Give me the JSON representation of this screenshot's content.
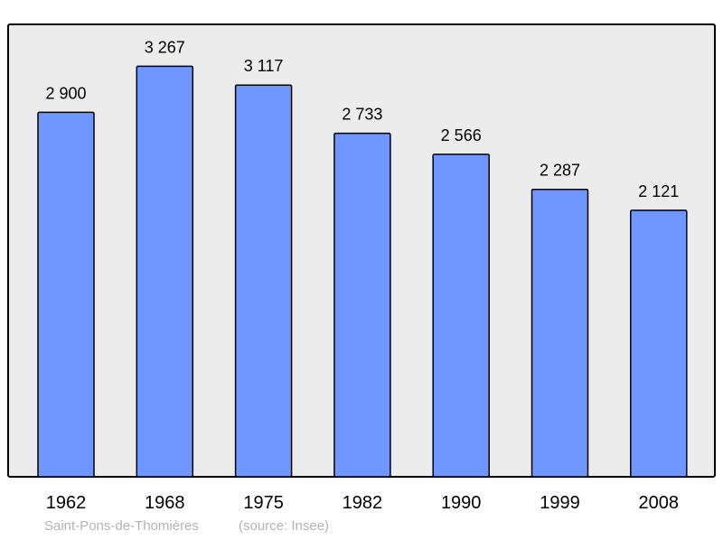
{
  "chart_data": {
    "type": "bar",
    "categories": [
      "1962",
      "1968",
      "1975",
      "1982",
      "1990",
      "1999",
      "2008"
    ],
    "values": [
      2900,
      3267,
      3117,
      2733,
      2566,
      2287,
      2121
    ],
    "data_labels": [
      "2 900",
      "3 267",
      "3 117",
      "2 733",
      "2 566",
      "2 287",
      "2 121"
    ],
    "title": "",
    "xlabel": "",
    "ylabel": "",
    "ylim": [
      0,
      3600
    ],
    "grid": false,
    "legend": "none",
    "colors": {
      "bar": "#7097ff",
      "plot_background": "#ececec",
      "border": "#000000"
    }
  },
  "footer": {
    "place": "Saint-Pons-de-Thomières",
    "source": "(source: Insee)"
  }
}
